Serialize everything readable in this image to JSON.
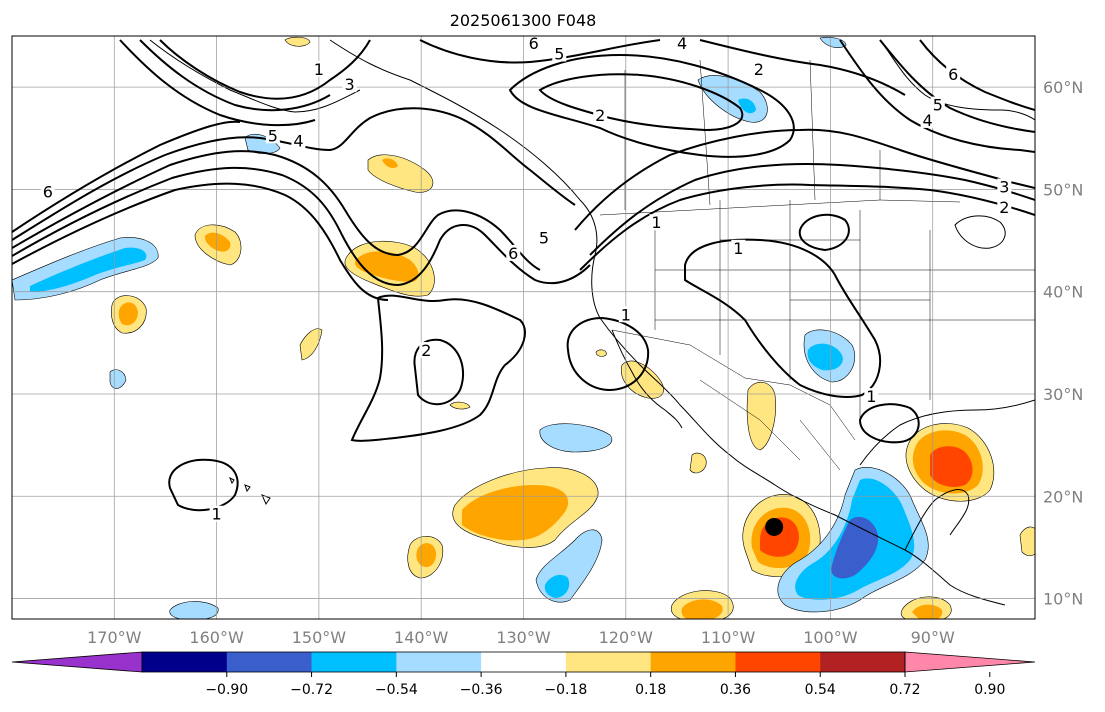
{
  "title": "2025061300 F048",
  "map": {
    "lon_ticks": [
      {
        "lon": -170,
        "label": "170°W"
      },
      {
        "lon": -160,
        "label": "160°W"
      },
      {
        "lon": -150,
        "label": "150°W"
      },
      {
        "lon": -140,
        "label": "140°W"
      },
      {
        "lon": -130,
        "label": "130°W"
      },
      {
        "lon": -120,
        "label": "120°W"
      },
      {
        "lon": -110,
        "label": "110°W"
      },
      {
        "lon": -100,
        "label": "100°W"
      },
      {
        "lon": -90,
        "label": "90°W"
      }
    ],
    "lat_ticks": [
      {
        "lat": 60,
        "label": "60°N"
      },
      {
        "lat": 50,
        "label": "50°N"
      },
      {
        "lat": 40,
        "label": "40°N"
      },
      {
        "lat": 30,
        "label": "30°N"
      },
      {
        "lat": 20,
        "label": "20°N"
      },
      {
        "lat": 10,
        "label": "10°N"
      }
    ],
    "extent": {
      "lon": [
        -180,
        -80
      ],
      "lat": [
        8,
        65
      ]
    },
    "marker": {
      "lon": -105.5,
      "lat": 17,
      "color": "#000000"
    },
    "contour_labels": [
      {
        "text": "1",
        "lon": -160,
        "lat": 18
      },
      {
        "text": "2",
        "lon": -139.5,
        "lat": 34
      },
      {
        "text": "1",
        "lon": -120,
        "lat": 37.5
      },
      {
        "text": "1",
        "lon": -117,
        "lat": 46.5
      },
      {
        "text": "1",
        "lon": -109,
        "lat": 44
      },
      {
        "text": "2",
        "lon": -122.5,
        "lat": 57
      },
      {
        "text": "2",
        "lon": -107,
        "lat": 61.5
      },
      {
        "text": "6",
        "lon": -129,
        "lat": 64
      },
      {
        "text": "5",
        "lon": -126.5,
        "lat": 63
      },
      {
        "text": "4",
        "lon": -114.5,
        "lat": 64
      },
      {
        "text": "6",
        "lon": -131,
        "lat": 43.5
      },
      {
        "text": "5",
        "lon": -128,
        "lat": 45
      },
      {
        "text": "1",
        "lon": -150,
        "lat": 61.5
      },
      {
        "text": "3",
        "lon": -147,
        "lat": 60
      },
      {
        "text": "4",
        "lon": -152,
        "lat": 54.5
      },
      {
        "text": "5",
        "lon": -154.5,
        "lat": 55
      },
      {
        "text": "6",
        "lon": -176.5,
        "lat": 49.5
      },
      {
        "text": "6",
        "lon": -88,
        "lat": 61
      },
      {
        "text": "5",
        "lon": -89.5,
        "lat": 58
      },
      {
        "text": "4",
        "lon": -90.5,
        "lat": 56.5
      },
      {
        "text": "3",
        "lon": -83,
        "lat": 50
      },
      {
        "text": "2",
        "lon": -83,
        "lat": 48
      },
      {
        "text": "1",
        "lon": -96,
        "lat": 29.5
      }
    ]
  },
  "colorbar": {
    "colors": [
      "#9932cc",
      "#00008b",
      "#3a5fcd",
      "#00bfff",
      "#a6dcff",
      "#ffffff",
      "#ffe680",
      "#ffa500",
      "#ff4500",
      "#b22222",
      "#ff88aa"
    ],
    "tick_labels": [
      "−0.90",
      "−0.72",
      "−0.54",
      "−0.36",
      "−0.18",
      "0.18",
      "0.36",
      "0.54",
      "0.72",
      "0.90"
    ]
  }
}
